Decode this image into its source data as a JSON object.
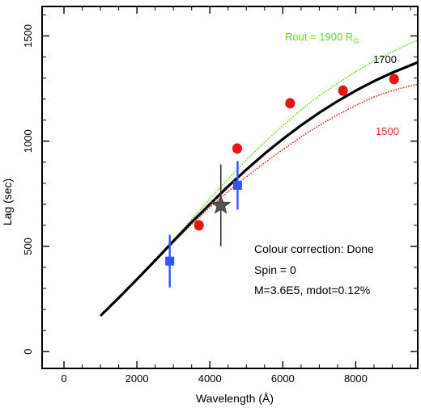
{
  "chart_data": {
    "type": "line",
    "title": "",
    "xlabel": "Wavelength (Å)",
    "ylabel": "Lag (sec)",
    "xlim": [
      -600,
      9700
    ],
    "ylim": [
      -80,
      1640
    ],
    "x_ticks": [
      0,
      2000,
      4000,
      6000,
      8000
    ],
    "y_ticks": [
      0,
      500,
      1000,
      1500
    ],
    "grid": false,
    "series": [
      {
        "name": "Rout = 1900 R",
        "name_sub": "G",
        "style": "dotted",
        "color": "#66dd22",
        "x": [
          1000,
          1500,
          2000,
          2500,
          3000,
          3500,
          4000,
          4500,
          5000,
          5500,
          6000,
          6500,
          7000,
          7500,
          8000,
          8500,
          9000,
          9500,
          9700
        ],
        "y": [
          170,
          255,
          343,
          435,
          530,
          628,
          725,
          820,
          910,
          995,
          1075,
          1148,
          1215,
          1275,
          1330,
          1380,
          1425,
          1465,
          1480
        ]
      },
      {
        "name": "1700",
        "style": "solid",
        "color": "#000000",
        "x": [
          1000,
          1500,
          2000,
          2500,
          3000,
          3500,
          4000,
          4500,
          5000,
          5500,
          6000,
          6500,
          7000,
          7500,
          8000,
          8500,
          9000,
          9500,
          9700
        ],
        "y": [
          170,
          255,
          343,
          433,
          525,
          615,
          700,
          785,
          865,
          940,
          1010,
          1075,
          1135,
          1190,
          1240,
          1285,
          1325,
          1360,
          1375
        ]
      },
      {
        "name": "1500",
        "style": "dotted",
        "color": "#dd3322",
        "x": [
          1000,
          1500,
          2000,
          2500,
          3000,
          3500,
          4000,
          4500,
          5000,
          5500,
          6000,
          6500,
          7000,
          7500,
          8000,
          8500,
          9000,
          9500,
          9700
        ],
        "y": [
          170,
          255,
          343,
          432,
          520,
          605,
          685,
          760,
          830,
          897,
          960,
          1020,
          1075,
          1125,
          1170,
          1210,
          1240,
          1263,
          1270
        ]
      }
    ],
    "red_points": [
      {
        "x": 3700,
        "y": 600
      },
      {
        "x": 4750,
        "y": 965
      },
      {
        "x": 6200,
        "y": 1180
      },
      {
        "x": 7650,
        "y": 1240
      },
      {
        "x": 9050,
        "y": 1295
      }
    ],
    "blue_points": [
      {
        "x": 2900,
        "y": 430,
        "err": 125
      },
      {
        "x": 4760,
        "y": 790,
        "err": 115
      }
    ],
    "star_points": [
      {
        "x": 4300,
        "y": 695,
        "err": 195
      }
    ],
    "colors": {
      "red_points": "#ee1111",
      "blue_points": "#3355ff",
      "star": "#555555"
    },
    "annotations": {
      "colour_correction": "Colour correction: Done",
      "spin": "Spin = 0",
      "mass_mdot": "M=3.6E5, mdot=0.12%"
    }
  }
}
